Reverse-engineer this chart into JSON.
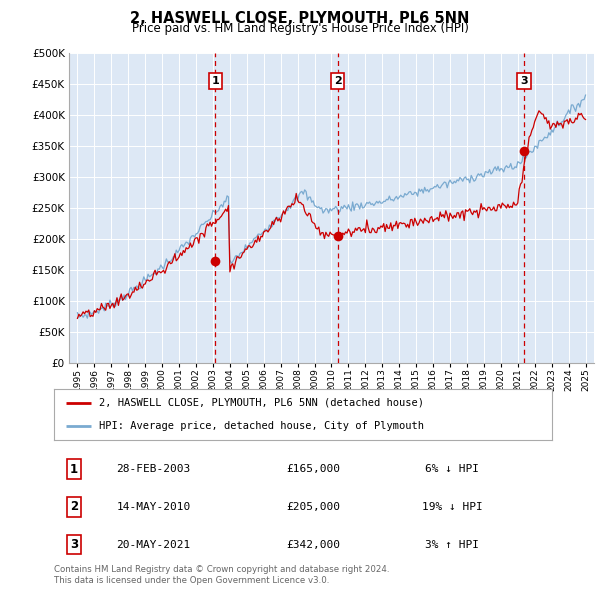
{
  "title": "2, HASWELL CLOSE, PLYMOUTH, PL6 5NN",
  "subtitle": "Price paid vs. HM Land Registry's House Price Index (HPI)",
  "red_line_label": "2, HASWELL CLOSE, PLYMOUTH, PL6 5NN (detached house)",
  "blue_line_label": "HPI: Average price, detached house, City of Plymouth",
  "transactions": [
    {
      "num": 1,
      "date": "28-FEB-2003",
      "price": 165000,
      "hpi_diff": "6% ↓ HPI",
      "x": 2003.15
    },
    {
      "num": 2,
      "date": "14-MAY-2010",
      "price": 205000,
      "hpi_diff": "19% ↓ HPI",
      "x": 2010.37
    },
    {
      "num": 3,
      "date": "20-MAY-2021",
      "price": 342000,
      "hpi_diff": "3% ↑ HPI",
      "x": 2021.37
    }
  ],
  "ylim": [
    0,
    500000
  ],
  "xlim": [
    1994.5,
    2025.5
  ],
  "yticks": [
    0,
    50000,
    100000,
    150000,
    200000,
    250000,
    300000,
    350000,
    400000,
    450000,
    500000
  ],
  "background_color": "#dde8f5",
  "red_color": "#cc0000",
  "blue_color": "#7aaad0",
  "footer": "Contains HM Land Registry data © Crown copyright and database right 2024.\nThis data is licensed under the Open Government Licence v3.0."
}
